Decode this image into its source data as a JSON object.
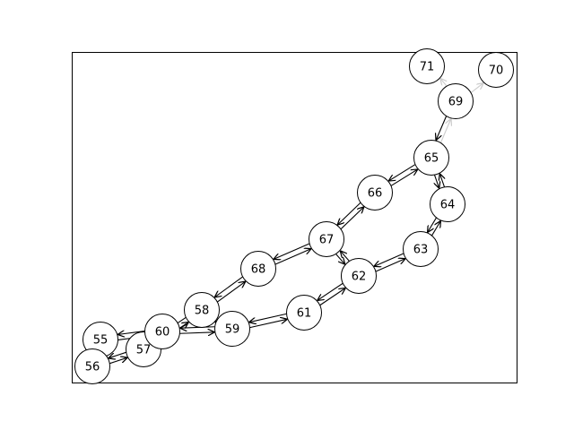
{
  "nodes": [
    {
      "id": "55",
      "label": "55"
    },
    {
      "id": "56",
      "label": "56"
    },
    {
      "id": "57",
      "label": "57"
    },
    {
      "id": "58",
      "label": "58"
    },
    {
      "id": "59",
      "label": "59"
    },
    {
      "id": "60",
      "label": "60"
    },
    {
      "id": "61",
      "label": "61"
    },
    {
      "id": "62",
      "label": "62"
    },
    {
      "id": "63",
      "label": "63"
    },
    {
      "id": "64",
      "label": "64"
    },
    {
      "id": "65",
      "label": "65"
    },
    {
      "id": "66",
      "label": "66"
    },
    {
      "id": "67",
      "label": "67"
    },
    {
      "id": "68",
      "label": "68"
    },
    {
      "id": "69",
      "label": "69"
    },
    {
      "id": "70",
      "label": "70"
    },
    {
      "id": "71",
      "label": "71"
    }
  ],
  "edges": [
    {
      "from": "55",
      "to": "56",
      "color": "#000000"
    },
    {
      "from": "56",
      "to": "55",
      "color": "#000000"
    },
    {
      "from": "55",
      "to": "60",
      "color": "#000000"
    },
    {
      "from": "60",
      "to": "55",
      "color": "#000000"
    },
    {
      "from": "56",
      "to": "57",
      "color": "#000000"
    },
    {
      "from": "57",
      "to": "56",
      "color": "#000000"
    },
    {
      "from": "57",
      "to": "58",
      "color": "#000000"
    },
    {
      "from": "58",
      "to": "57",
      "color": "#000000"
    },
    {
      "from": "60",
      "to": "59",
      "color": "#000000"
    },
    {
      "from": "59",
      "to": "60",
      "color": "#000000"
    },
    {
      "from": "58",
      "to": "59",
      "color": "#000000"
    },
    {
      "from": "58",
      "to": "68",
      "color": "#000000"
    },
    {
      "from": "68",
      "to": "58",
      "color": "#000000"
    },
    {
      "from": "59",
      "to": "61",
      "color": "#000000"
    },
    {
      "from": "61",
      "to": "59",
      "color": "#000000"
    },
    {
      "from": "61",
      "to": "62",
      "color": "#000000"
    },
    {
      "from": "62",
      "to": "61",
      "color": "#000000"
    },
    {
      "from": "62",
      "to": "63",
      "color": "#000000"
    },
    {
      "from": "63",
      "to": "62",
      "color": "#000000"
    },
    {
      "from": "62",
      "to": "67",
      "color": "#000000"
    },
    {
      "from": "67",
      "to": "62",
      "color": "#000000"
    },
    {
      "from": "63",
      "to": "64",
      "color": "#000000"
    },
    {
      "from": "64",
      "to": "63",
      "color": "#000000"
    },
    {
      "from": "64",
      "to": "65",
      "color": "#000000"
    },
    {
      "from": "65",
      "to": "64",
      "color": "#000000"
    },
    {
      "from": "65",
      "to": "66",
      "color": "#000000"
    },
    {
      "from": "66",
      "to": "65",
      "color": "#000000"
    },
    {
      "from": "66",
      "to": "67",
      "color": "#000000"
    },
    {
      "from": "67",
      "to": "66",
      "color": "#000000"
    },
    {
      "from": "67",
      "to": "68",
      "color": "#000000"
    },
    {
      "from": "68",
      "to": "67",
      "color": "#000000"
    },
    {
      "from": "69",
      "to": "65",
      "color": "#000000"
    },
    {
      "from": "65",
      "to": "69",
      "color": "#cccccc"
    },
    {
      "from": "69",
      "to": "71",
      "color": "#cccccc"
    },
    {
      "from": "69",
      "to": "70",
      "color": "#cccccc"
    }
  ],
  "colors": {
    "node_fill": "#ffffff",
    "node_stroke": "#000000",
    "frame": "#000000",
    "faded_edge": "#cccccc"
  }
}
